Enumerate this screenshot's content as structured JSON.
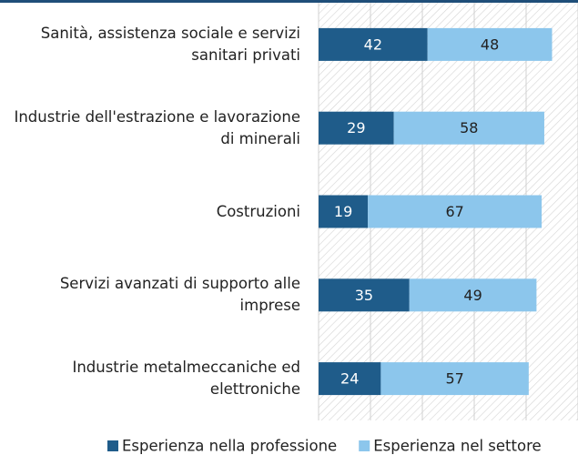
{
  "chart_data": {
    "type": "stacked-barh",
    "categories": [
      "Sanità, assistenza sociale e servizi sanitari privati",
      "Industrie dell'estrazione e lavorazione di minerali",
      "Costruzioni",
      "Servizi avanzati di supporto alle imprese",
      "Industrie metalmeccaniche ed elettroniche"
    ],
    "series": [
      {
        "name": "Esperienza nella professione",
        "color": "#1f5c8a",
        "values": [
          42,
          29,
          19,
          35,
          24
        ]
      },
      {
        "name": "Esperienza nel settore",
        "color": "#8cc6ec",
        "values": [
          48,
          58,
          67,
          49,
          57
        ]
      }
    ],
    "xlim": [
      0,
      100
    ],
    "xticks": [
      0,
      20,
      40,
      60,
      80,
      100
    ],
    "grid": true,
    "legend": "bottom"
  }
}
